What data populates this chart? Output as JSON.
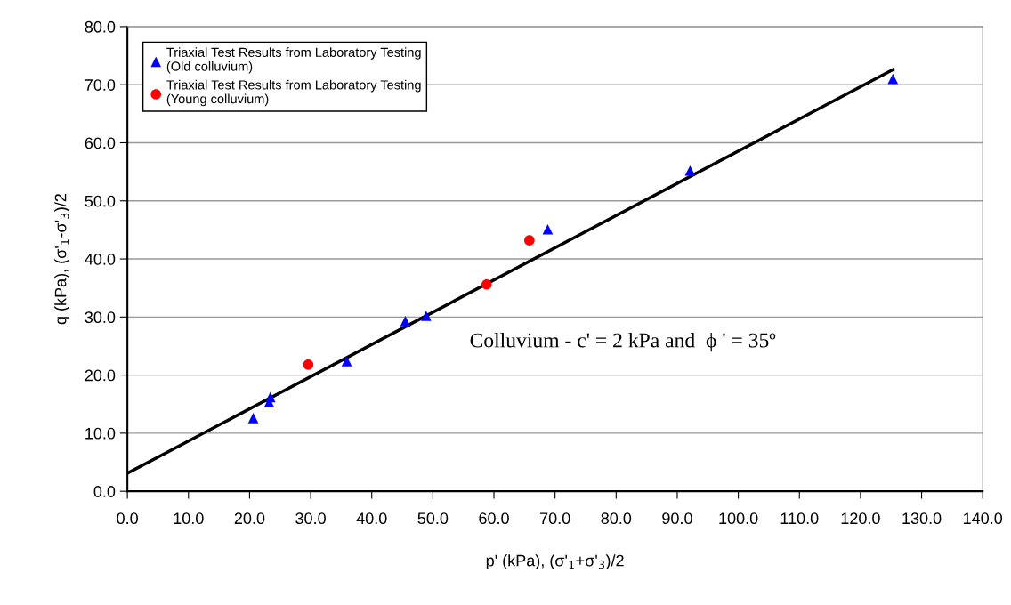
{
  "chart_data": {
    "type": "scatter",
    "xlabel": "p' (kPa), (σ'$_{1}$+σ'$_{3}$)/2",
    "ylabel": "q (kPa), (σ'$_{1}$-σ'$_{3}$)/2",
    "xlim": [
      0,
      140
    ],
    "ylim": [
      0,
      80
    ],
    "xticks": [
      {
        "value": 0,
        "label": "0.0"
      },
      {
        "value": 10,
        "label": "10.0"
      },
      {
        "value": 20,
        "label": "20.0"
      },
      {
        "value": 30,
        "label": "30.0"
      },
      {
        "value": 40,
        "label": "40.0"
      },
      {
        "value": 50,
        "label": "50.0"
      },
      {
        "value": 60,
        "label": "60.0"
      },
      {
        "value": 70,
        "label": "70.0"
      },
      {
        "value": 80,
        "label": "80.0"
      },
      {
        "value": 90,
        "label": "90.0"
      },
      {
        "value": 100,
        "label": "100.0"
      },
      {
        "value": 110,
        "label": "110.0"
      },
      {
        "value": 120,
        "label": "120.0"
      },
      {
        "value": 130,
        "label": "130.0"
      },
      {
        "value": 140,
        "label": "140.0"
      }
    ],
    "yticks": [
      {
        "value": 0,
        "label": "0.0"
      },
      {
        "value": 10,
        "label": "10.0"
      },
      {
        "value": 20,
        "label": "20.0"
      },
      {
        "value": 30,
        "label": "30.0"
      },
      {
        "value": 40,
        "label": "40.0"
      },
      {
        "value": 50,
        "label": "50.0"
      },
      {
        "value": 60,
        "label": "60.0"
      },
      {
        "value": 70,
        "label": "70.0"
      },
      {
        "value": 80,
        "label": "80.0"
      }
    ],
    "grid": "y",
    "legend": "top left",
    "series": [
      {
        "name": "Triaxial Test Results from Laboratory Testing\n(Old colluvium)",
        "color": "#0000ff",
        "marker": "triangle",
        "x": [
          20.6,
          23.2,
          23.4,
          35.9,
          45.5,
          48.9,
          68.8,
          92.1,
          125.3
        ],
        "values": [
          12.6,
          15.3,
          16.2,
          22.4,
          29.3,
          30.2,
          45.1,
          55.2,
          71.0
        ]
      },
      {
        "name": "Triaxial Test Results from Laboratory Testing\n(Young colluvium)",
        "color": "#ff0000",
        "marker": "circle",
        "x": [
          29.6,
          58.8,
          65.8
        ],
        "values": [
          21.8,
          35.6,
          43.2
        ]
      },
      {
        "type": "line",
        "color": "#000000",
        "marker": "none",
        "x": [
          0,
          125.3
        ],
        "values": [
          3.1,
          72.6
        ]
      }
    ],
    "annotations": [
      "Colluvium - c' = 2 kPa and  ϕ ' = 35º"
    ]
  }
}
